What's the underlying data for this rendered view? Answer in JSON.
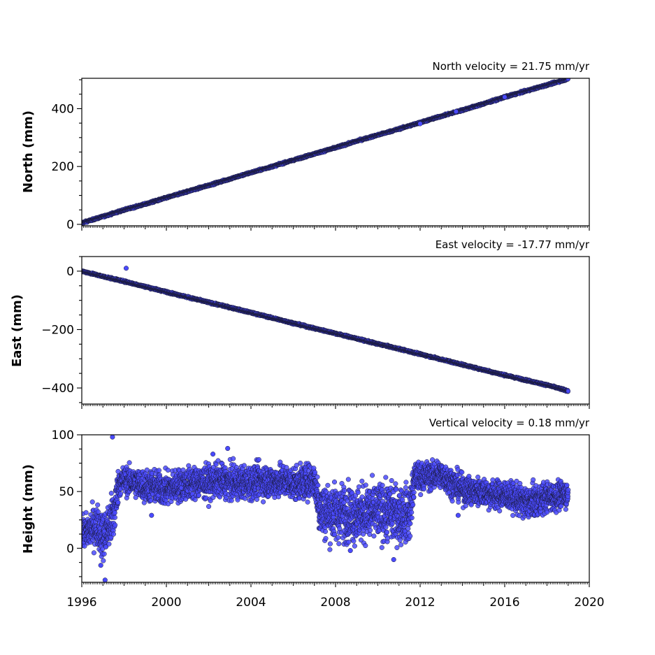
{
  "chart_data": [
    {
      "type": "scatter",
      "title": "North velocity = 21.75 mm/yr",
      "xlabel": "",
      "ylabel": "North (mm)",
      "xlim": [
        1996,
        2020
      ],
      "ylim": [
        -5,
        505
      ],
      "yticks": [
        0,
        200,
        400
      ],
      "ytick_labels": [
        "0",
        "200",
        "400"
      ],
      "series": [
        {
          "x": [
            1996.0,
            1997.0,
            1998.0,
            1999.0,
            2000.0,
            2001.0,
            2002.0,
            2003.0,
            2004.0,
            2005.0,
            2006.0,
            2007.0,
            2008.0,
            2009.0,
            2010.0,
            2011.0,
            2012.0,
            2013.0,
            2014.0,
            2015.0,
            2016.0,
            2017.0,
            2018.0,
            2019.0
          ],
          "y": [
            5,
            27,
            50,
            70,
            92,
            114,
            135,
            157,
            179,
            200,
            222,
            244,
            265,
            288,
            309,
            330,
            352,
            374,
            395,
            417,
            440,
            461,
            482,
            503
          ]
        }
      ],
      "outliers": [
        {
          "x": 2012.0,
          "y": 348
        },
        {
          "x": 2013.7,
          "y": 390
        },
        {
          "x": 2016.0,
          "y": 440
        }
      ],
      "marker_color": "#4a4aff",
      "marker_edge": "#1a1a3a"
    },
    {
      "type": "scatter",
      "title": "East velocity = -17.77 mm/yr",
      "xlabel": "",
      "ylabel": "East (mm)",
      "xlim": [
        1996,
        2020
      ],
      "ylim": [
        -455,
        50
      ],
      "yticks": [
        0,
        -200,
        -400
      ],
      "ytick_labels": [
        "0",
        "−200",
        "−400"
      ],
      "series": [
        {
          "x": [
            1996.0,
            1997.0,
            1998.0,
            1999.0,
            2000.0,
            2001.0,
            2002.0,
            2003.0,
            2004.0,
            2005.0,
            2006.0,
            2007.0,
            2008.0,
            2009.0,
            2010.0,
            2011.0,
            2012.0,
            2013.0,
            2014.0,
            2015.0,
            2016.0,
            2017.0,
            2018.0,
            2019.0
          ],
          "y": [
            0,
            -18,
            -35,
            -53,
            -71,
            -89,
            -107,
            -124,
            -142,
            -160,
            -178,
            -196,
            -213,
            -231,
            -249,
            -266,
            -284,
            -302,
            -320,
            -338,
            -356,
            -373,
            -390,
            -410
          ]
        }
      ],
      "outliers": [
        {
          "x": 1998.1,
          "y": 10
        }
      ],
      "marker_color": "#4a4aff",
      "marker_edge": "#1a1a3a"
    },
    {
      "type": "scatter",
      "title": "Vertical velocity = 0.18 mm/yr",
      "xlabel": "",
      "ylabel": "Height (mm)",
      "xlim": [
        1996,
        2020
      ],
      "ylim": [
        -30,
        100
      ],
      "yticks": [
        0,
        50,
        100
      ],
      "ytick_labels": [
        "0",
        "50",
        "100"
      ],
      "xticks": [
        1996,
        2000,
        2004,
        2008,
        2012,
        2016,
        2020
      ],
      "xtick_labels": [
        "1996",
        "2000",
        "2004",
        "2008",
        "2012",
        "2016",
        "2020"
      ],
      "series": [
        {
          "x": [
            1996.0,
            1996.25,
            1996.5,
            1996.75,
            1997.0,
            1997.25,
            1997.5,
            1997.75,
            1998.0,
            1998.5,
            1999.0,
            1999.5,
            2000.0,
            2000.5,
            2001.0,
            2001.5,
            2002.0,
            2002.5,
            2003.0,
            2003.5,
            2004.0,
            2004.5,
            2005.0,
            2005.5,
            2006.0,
            2006.5,
            2007.0,
            2007.25,
            2007.5,
            2008.0,
            2008.5,
            2009.0,
            2009.5,
            2010.0,
            2010.5,
            2011.0,
            2011.5,
            2011.75,
            2012.0,
            2012.5,
            2013.0,
            2013.5,
            2014.0,
            2014.5,
            2015.0,
            2015.5,
            2016.0,
            2016.5,
            2017.0,
            2017.5,
            2018.0,
            2018.5,
            2019.0
          ],
          "y": [
            12,
            15,
            18,
            20,
            10,
            18,
            28,
            58,
            60,
            58,
            55,
            54,
            52,
            55,
            57,
            58,
            58,
            60,
            58,
            58,
            58,
            60,
            58,
            60,
            57,
            58,
            60,
            35,
            33,
            31,
            32,
            30,
            31,
            32,
            32,
            30,
            30,
            63,
            63,
            64,
            65,
            58,
            52,
            50,
            50,
            47,
            47,
            44,
            40,
            42,
            45,
            46,
            48
          ]
        }
      ],
      "spread": [
        6,
        8,
        8,
        9,
        10,
        10,
        12,
        6,
        6,
        6,
        7,
        7,
        7,
        7,
        7,
        7,
        7,
        7,
        7,
        7,
        7,
        7,
        7,
        7,
        7,
        7,
        7,
        12,
        12,
        12,
        12,
        12,
        12,
        12,
        12,
        12,
        12,
        6,
        6,
        6,
        6,
        6,
        6,
        6,
        6,
        6,
        6,
        6,
        7,
        7,
        6,
        6,
        6
      ],
      "outliers": [
        {
          "x": 1997.45,
          "y": 98
        },
        {
          "x": 1997.1,
          "y": -28
        },
        {
          "x": 1996.9,
          "y": -15
        },
        {
          "x": 1999.3,
          "y": 29
        },
        {
          "x": 2002.9,
          "y": 88
        },
        {
          "x": 2002.2,
          "y": 83
        },
        {
          "x": 2008.7,
          "y": -2
        },
        {
          "x": 2010.75,
          "y": -10
        },
        {
          "x": 2013.8,
          "y": 29
        }
      ],
      "marker_color": "#4a4aff",
      "marker_edge": "#1a1a3a"
    }
  ]
}
